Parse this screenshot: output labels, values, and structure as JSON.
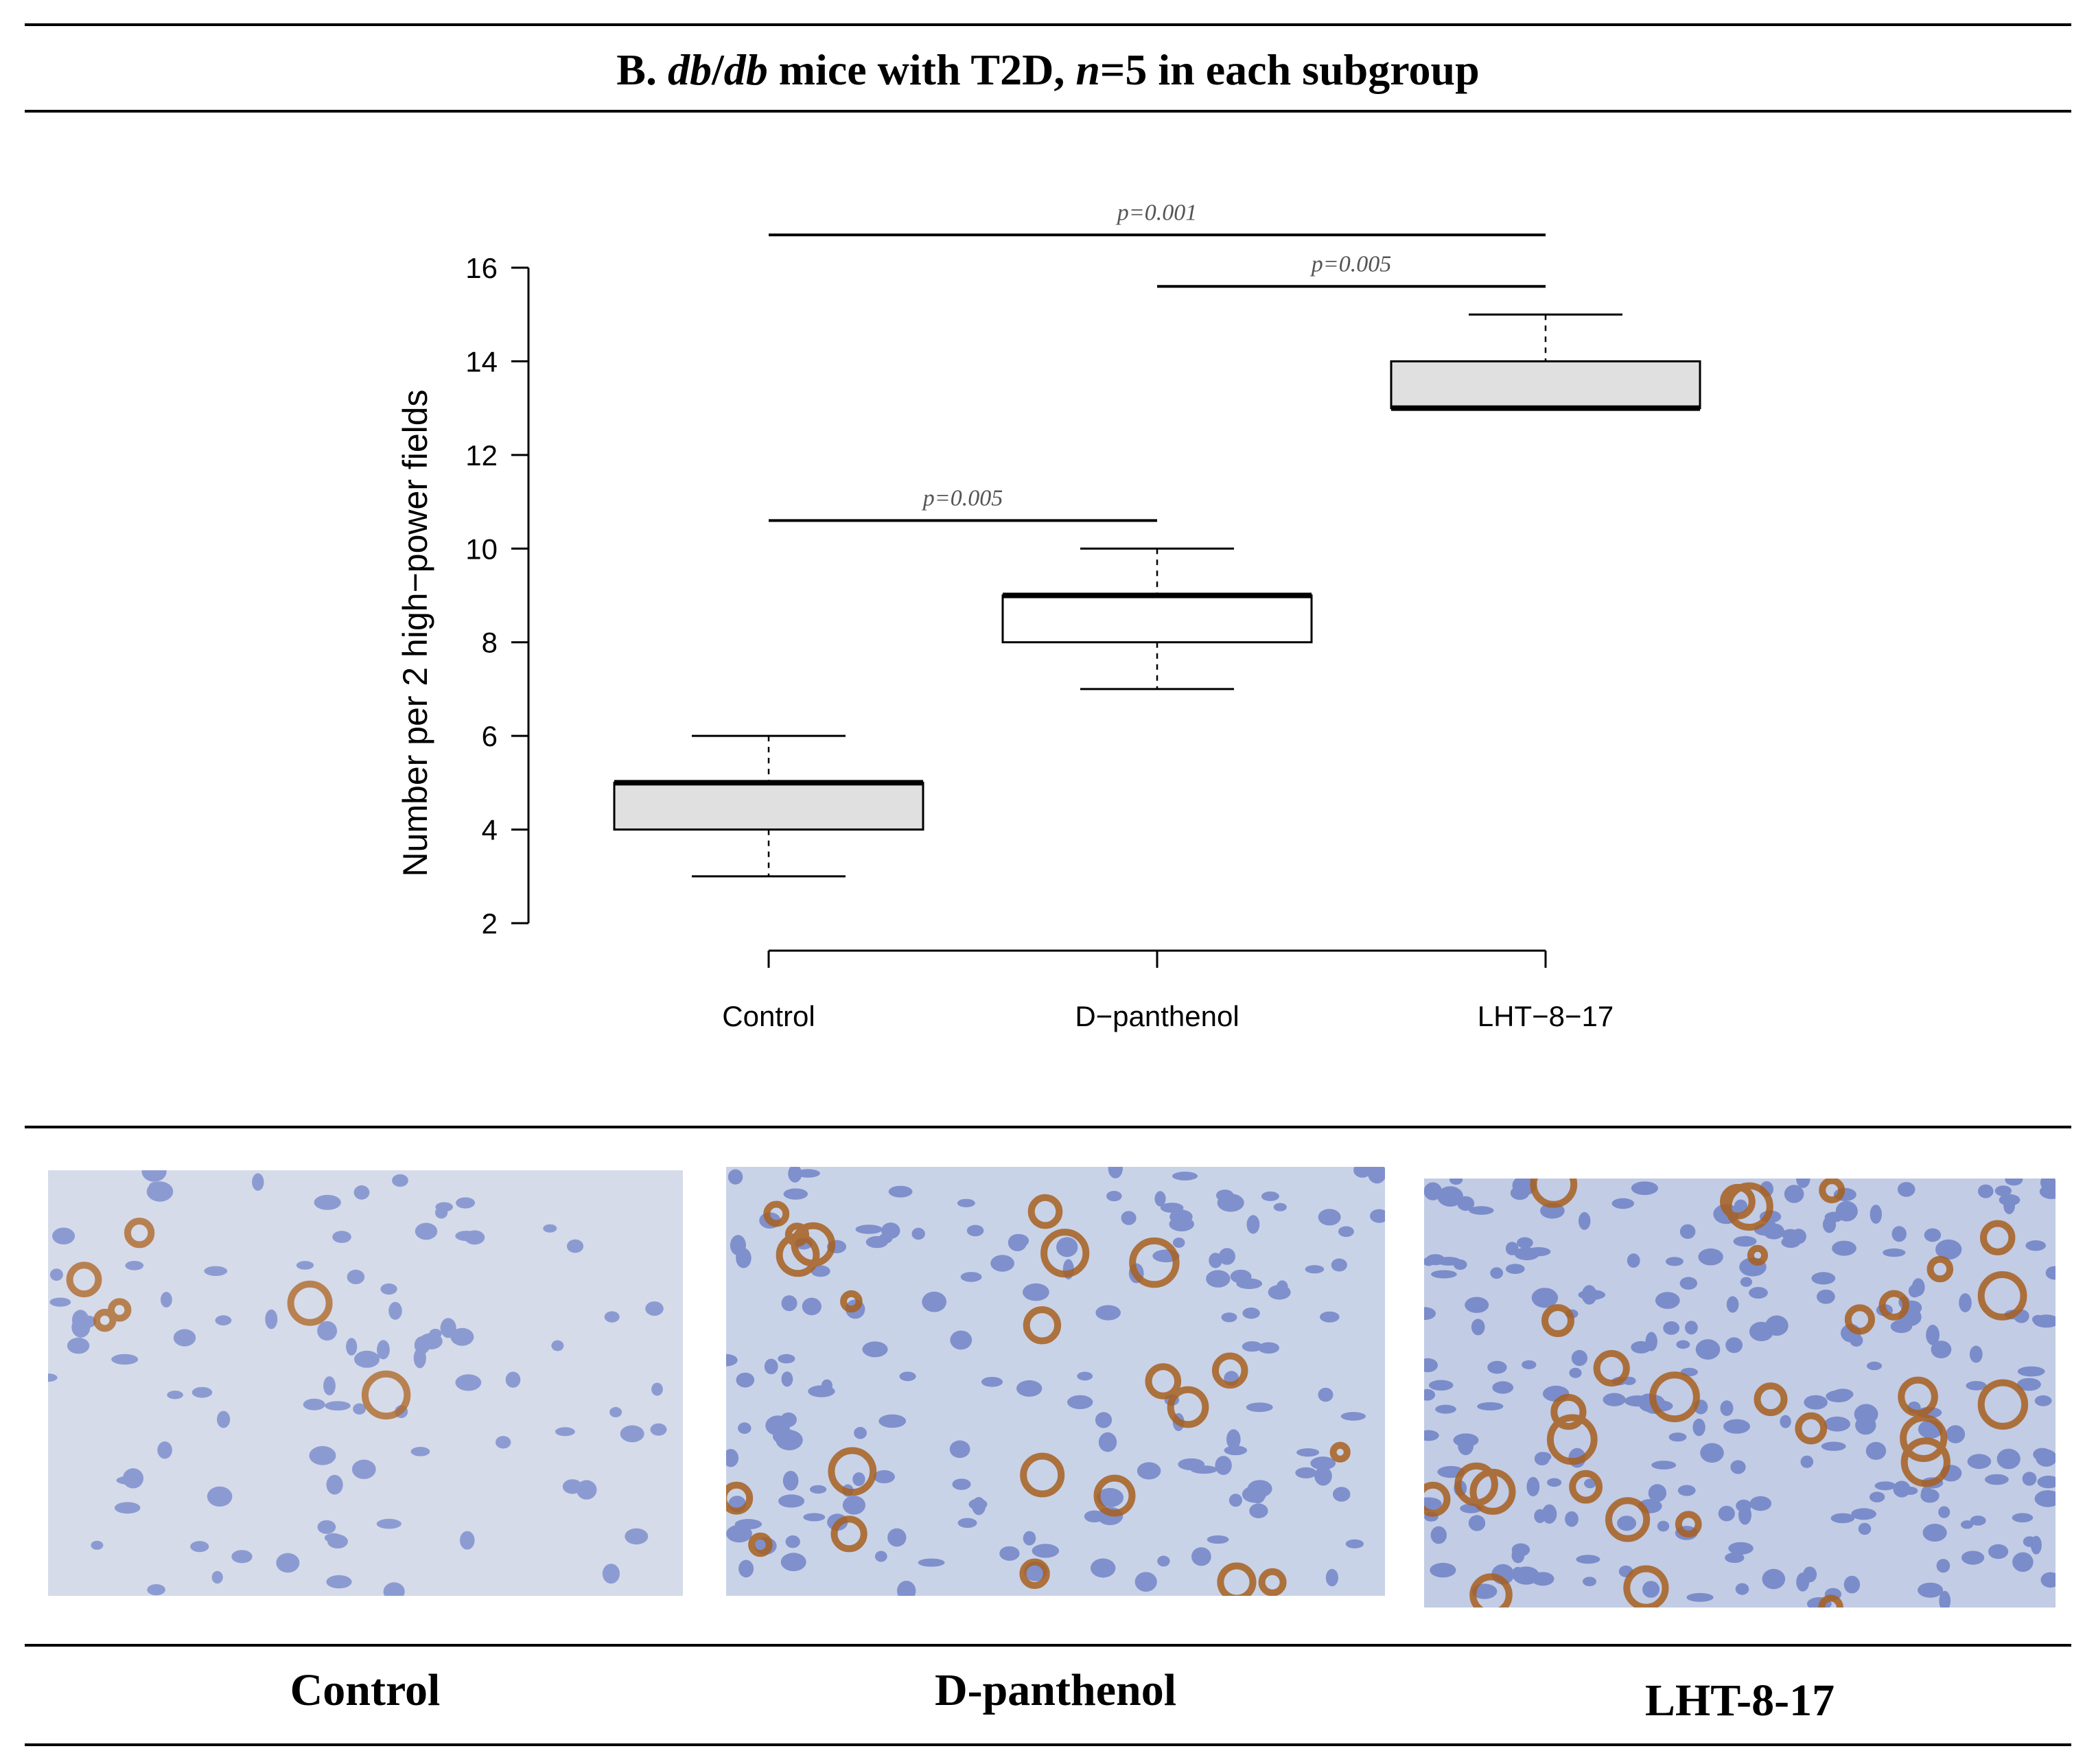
{
  "header": {
    "title_prefix": "B. ",
    "title_italic_1": "db",
    "title_sep": "/",
    "title_italic_2": "db",
    "title_mid": " mice with T2D, ",
    "title_italic_3": "n",
    "title_suffix": "=5 in each subgroup"
  },
  "chart_data": {
    "type": "box",
    "ylabel": "Number per 2 high−power fields",
    "ylim": [
      2,
      16
    ],
    "yticks": [
      2,
      4,
      6,
      8,
      10,
      12,
      14,
      16
    ],
    "categories": [
      "Control",
      "D−panthenol",
      "LHT−8−17"
    ],
    "boxes": [
      {
        "category": "Control",
        "min": 3,
        "q1": 4,
        "median": 5,
        "q3": 5,
        "max": 6,
        "fill": "#e0e0e0"
      },
      {
        "category": "D−panthenol",
        "min": 7,
        "q1": 8,
        "median": 9,
        "q3": 9,
        "max": 10,
        "fill": "#ffffff"
      },
      {
        "category": "LHT−8−17",
        "min": 13,
        "q1": 13,
        "median": 13,
        "q3": 14,
        "max": 15,
        "fill": "#e0e0e0"
      }
    ],
    "comparisons": [
      {
        "from": "Control",
        "to": "LHT−8−17",
        "label": "p=0.001",
        "y": 16.7
      },
      {
        "from": "D−panthenol",
        "to": "LHT−8−17",
        "label": "p=0.005",
        "y": 15.6
      },
      {
        "from": "Control",
        "to": "D−panthenol",
        "label": "p=0.005",
        "y": 10.6
      }
    ]
  },
  "micrographs": [
    {
      "caption": "Control"
    },
    {
      "caption": "D-panthenol"
    },
    {
      "caption": "LHT-8-17"
    }
  ]
}
